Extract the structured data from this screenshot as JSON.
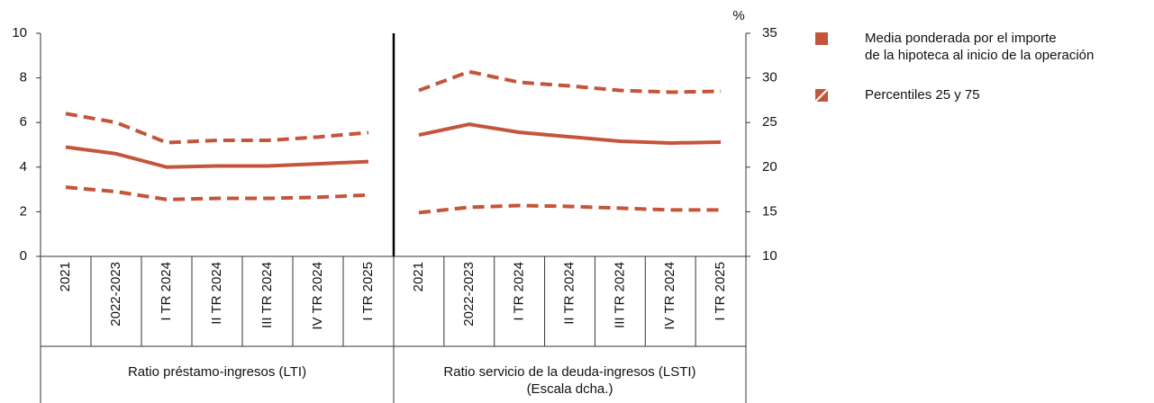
{
  "chart_data": {
    "type": "line",
    "y_unit": "%",
    "ylim": [
      0,
      10
    ],
    "yticks": [
      0,
      2,
      4,
      6,
      8,
      10
    ],
    "y2lim": [
      10,
      35
    ],
    "y2ticks": [
      10,
      15,
      20,
      25,
      30,
      35
    ],
    "categories": [
      "2021",
      "2022-2023",
      "I TR 2024",
      "II TR 2024",
      "III TR 2024",
      "IV TR 2024",
      "I TR 2025"
    ],
    "panels": [
      {
        "label": "Ratio préstamo-ingresos (LTI)",
        "axis": "y"
      },
      {
        "label": "Ratio servicio de la deuda-ingresos (LSTI)\n(Escala dcha.)",
        "axis": "y2"
      }
    ],
    "series": [
      {
        "name": "Media ponderada por el importe\nde la hipoteca al inicio de la operación",
        "color": "#c4553b",
        "dashed": false,
        "values": [
          [
            4.9,
            4.6,
            4.0,
            4.05,
            4.05,
            4.15,
            4.25
          ],
          [
            23.6,
            24.8,
            23.9,
            23.4,
            22.9,
            22.7,
            22.8
          ]
        ]
      },
      {
        "name": "Percentiles 25 y 75",
        "color": "#c4553b",
        "dashed": true,
        "low": [
          [
            3.1,
            2.9,
            2.55,
            2.6,
            2.6,
            2.65,
            2.75
          ],
          [
            14.9,
            15.5,
            15.7,
            15.6,
            15.4,
            15.2,
            15.2
          ]
        ],
        "high": [
          [
            6.4,
            6.0,
            5.1,
            5.2,
            5.2,
            5.35,
            5.55
          ],
          [
            28.6,
            30.7,
            29.5,
            29.1,
            28.6,
            28.4,
            28.5
          ]
        ]
      }
    ]
  }
}
